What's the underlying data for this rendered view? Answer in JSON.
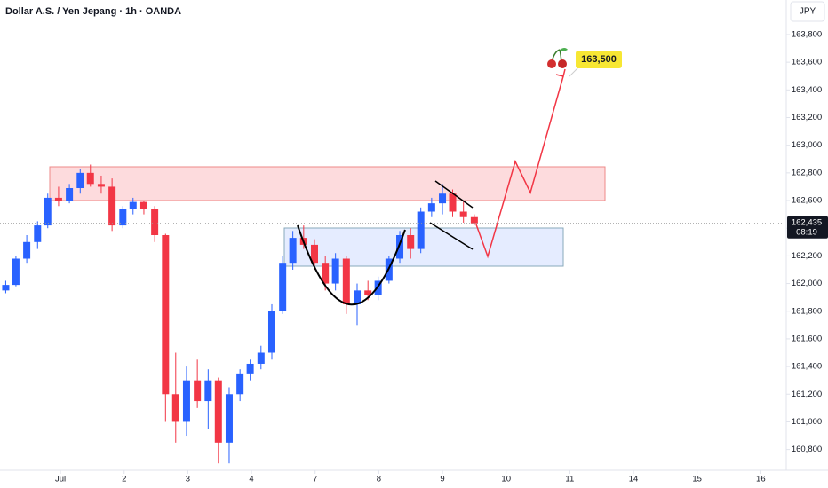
{
  "chart_data": {
    "type": "candlestick",
    "title": "Dollar A.S. / Yen Jepang · 1h · OANDA",
    "currency": "JPY",
    "x": [
      -0.86,
      -0.7,
      -0.53,
      -0.36,
      -0.2,
      -0.03,
      0.14,
      0.31,
      0.47,
      0.64,
      0.81,
      0.98,
      1.14,
      1.31,
      1.48,
      1.65,
      1.81,
      1.98,
      2.15,
      2.32,
      2.48,
      2.65,
      2.82,
      2.98,
      3.15,
      3.32,
      3.49,
      3.65,
      3.82,
      3.99,
      4.16,
      4.32,
      4.49,
      4.66,
      4.83,
      4.99,
      5.16,
      5.33,
      5.5,
      5.66,
      5.83,
      6.0,
      6.16,
      6.33,
      6.5
    ],
    "open": [
      161950,
      161990,
      162180,
      162300,
      162420,
      162620,
      162600,
      162690,
      162800,
      162720,
      162700,
      162420,
      162540,
      162590,
      162540,
      162350,
      161200,
      161000,
      161300,
      161150,
      161300,
      160850,
      161200,
      161350,
      161420,
      161500,
      161800,
      162150,
      162330,
      162280,
      162150,
      162000,
      162180,
      161850,
      161950,
      161920,
      162020,
      162180,
      162350,
      162250,
      162520,
      162580,
      162650,
      162520,
      162480
    ],
    "high": [
      162020,
      162200,
      162350,
      162450,
      162650,
      162700,
      162720,
      162830,
      162860,
      162780,
      162760,
      162560,
      162620,
      162600,
      162560,
      162360,
      161500,
      161400,
      161450,
      161380,
      161320,
      161250,
      161380,
      161450,
      161550,
      161850,
      162200,
      162380,
      162420,
      162320,
      162200,
      162220,
      162200,
      162000,
      162020,
      162050,
      162200,
      162380,
      162400,
      162550,
      162620,
      162720,
      162680,
      162600,
      162500
    ],
    "low": [
      161930,
      161980,
      162150,
      162250,
      162400,
      162560,
      162580,
      162650,
      162700,
      162650,
      162380,
      162400,
      162500,
      162500,
      162300,
      161000,
      160850,
      160900,
      161100,
      160950,
      160700,
      160700,
      161150,
      161300,
      161380,
      161450,
      161780,
      162100,
      162250,
      162100,
      161950,
      161950,
      161780,
      161700,
      161880,
      161880,
      162000,
      162150,
      162180,
      162220,
      162480,
      162500,
      162480,
      162440,
      162420
    ],
    "close": [
      161990,
      162180,
      162300,
      162420,
      162620,
      162600,
      162690,
      162800,
      162720,
      162700,
      162420,
      162540,
      162590,
      162540,
      162350,
      161200,
      161000,
      161300,
      161150,
      161300,
      160850,
      161200,
      161350,
      161420,
      161500,
      161800,
      162150,
      162330,
      162280,
      162150,
      162000,
      162180,
      161850,
      161950,
      161920,
      162020,
      162180,
      162350,
      162250,
      162520,
      162580,
      162650,
      162520,
      162480,
      162435
    ],
    "up_color": "#2962ff",
    "down_color": "#f23645",
    "xlim": [
      -0.95,
      11.4
    ],
    "ylim": [
      160650,
      164050
    ],
    "xticks": [
      {
        "value": 0,
        "label": "Jul"
      },
      {
        "value": 1,
        "label": "2"
      },
      {
        "value": 2,
        "label": "3"
      },
      {
        "value": 3,
        "label": "4"
      },
      {
        "value": 4,
        "label": "7"
      },
      {
        "value": 5,
        "label": "8"
      },
      {
        "value": 6,
        "label": "9"
      },
      {
        "value": 7,
        "label": "10"
      },
      {
        "value": 8,
        "label": "11"
      },
      {
        "value": 9,
        "label": "14"
      },
      {
        "value": 10,
        "label": "15"
      },
      {
        "value": 11,
        "label": "16"
      }
    ],
    "yticks": [
      {
        "value": 163800,
        "label": "163,800"
      },
      {
        "value": 163600,
        "label": "163,600"
      },
      {
        "value": 163400,
        "label": "163,400"
      },
      {
        "value": 163200,
        "label": "163,200"
      },
      {
        "value": 163000,
        "label": "163,000"
      },
      {
        "value": 162800,
        "label": "162,800"
      },
      {
        "value": 162600,
        "label": "162,600"
      },
      {
        "value": 162400,
        "label": "162,400"
      },
      {
        "value": 162200,
        "label": "162,200"
      },
      {
        "value": 162000,
        "label": "162,000"
      },
      {
        "value": 161800,
        "label": "161,800"
      },
      {
        "value": 161600,
        "label": "161,600"
      },
      {
        "value": 161400,
        "label": "161,400"
      },
      {
        "value": 161200,
        "label": "161,200"
      },
      {
        "value": 161000,
        "label": "161,000"
      },
      {
        "value": 160800,
        "label": "160,800"
      }
    ],
    "last_price": {
      "value": 162435,
      "label": "162,435",
      "countdown": "08:19"
    },
    "target": {
      "value": 163500,
      "label": "163,500"
    }
  }
}
